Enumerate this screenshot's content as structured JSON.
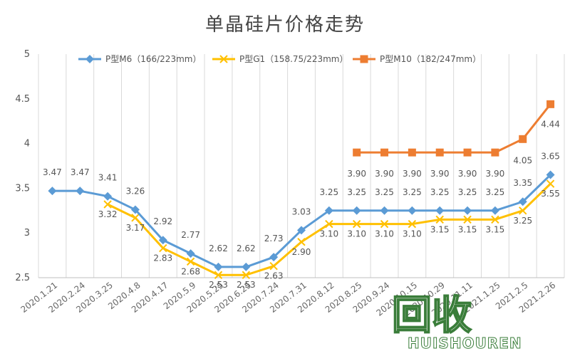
{
  "chart_data": {
    "type": "line",
    "title": "单晶硅片价格走势",
    "xlabel": "",
    "ylabel": "",
    "ylim": [
      2.5,
      5
    ],
    "yticks": [
      "2.5",
      "3",
      "3.5",
      "4",
      "4.5",
      "5"
    ],
    "categories": [
      "2020.1.21",
      "2020.2.24",
      "2020.3.25",
      "2020.4.8",
      "2020.4.17",
      "2020.5.9",
      "2020.5.25",
      "2020.6.25",
      "2020.7.24",
      "2020.7.31",
      "2020.8.12",
      "2020.8.25",
      "2020.9.24",
      "2020.10.15",
      "2020.10.29",
      "2020.11.11",
      "2021.1.25",
      "2021.2.5",
      "2021.2.26"
    ],
    "grid": "vertical",
    "legend_position": "top",
    "series": [
      {
        "name": "P型M6（166/223mm）",
        "color": "#5b9bd5",
        "marker": "diamond",
        "values": [
          3.47,
          3.47,
          3.41,
          3.26,
          2.92,
          2.77,
          2.62,
          2.62,
          2.73,
          3.03,
          3.25,
          3.25,
          3.25,
          3.25,
          3.25,
          3.25,
          3.25,
          3.35,
          3.65
        ],
        "labels": [
          "3.47",
          "3.47",
          "3.41",
          "3.26",
          "2.92",
          "2.77",
          "2.62",
          "2.62",
          "2.73",
          "3.03",
          "3.25",
          "3.25",
          "3.25",
          "3.25",
          "3.25",
          "3.25",
          "3.25",
          "3.35",
          "3.65"
        ]
      },
      {
        "name": "P型G1（158.75/223mm）",
        "color": "#ffc000",
        "marker": "x",
        "values": [
          null,
          null,
          3.32,
          3.17,
          2.83,
          2.68,
          2.53,
          2.53,
          2.63,
          2.9,
          3.1,
          3.1,
          3.1,
          3.1,
          3.15,
          3.15,
          3.15,
          3.25,
          3.55
        ],
        "labels": [
          null,
          null,
          "3.32",
          "3.17",
          "2.83",
          "2.68",
          "2.53",
          "2.53",
          "2.63",
          "2.90",
          "3.10",
          "3.10",
          "3.10",
          "3.10",
          "3.15",
          "3.15",
          "3.15",
          "3.25",
          "3.55"
        ]
      },
      {
        "name": "P型M10（182/247mm）",
        "color": "#ed7d31",
        "marker": "square",
        "values": [
          null,
          null,
          null,
          null,
          null,
          null,
          null,
          null,
          null,
          null,
          null,
          3.9,
          3.9,
          3.9,
          3.9,
          3.9,
          3.9,
          4.05,
          4.44
        ],
        "labels": [
          null,
          null,
          null,
          null,
          null,
          null,
          null,
          null,
          null,
          null,
          null,
          "3.90",
          "3.90",
          "3.90",
          "3.90",
          "3.90",
          "3.90",
          "4.05",
          "4.44"
        ]
      }
    ]
  },
  "watermark": {
    "logo_text": "回收",
    "sub_text": "HUISHOUREN"
  }
}
